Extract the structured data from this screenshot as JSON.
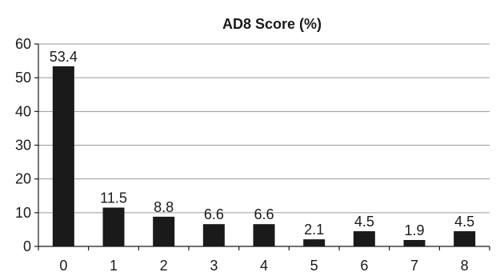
{
  "chart_data": {
    "type": "bar",
    "title": "AD8 Score (%)",
    "xlabel": "",
    "ylabel": "",
    "categories": [
      "0",
      "1",
      "2",
      "3",
      "4",
      "5",
      "6",
      "7",
      "8"
    ],
    "values": [
      53.4,
      11.5,
      8.8,
      6.6,
      6.6,
      2.1,
      4.5,
      1.9,
      4.5
    ],
    "data_labels": [
      "53.4",
      "11.5",
      "8.8",
      "6.6",
      "6.6",
      "2.1",
      "4.5",
      "1.9",
      "4.5"
    ],
    "ylim": [
      0,
      60
    ],
    "yticks": [
      "0",
      "10",
      "20",
      "30",
      "40",
      "50",
      "60"
    ],
    "grid": true,
    "legend": false,
    "bar_color": "#1a1a1a"
  }
}
